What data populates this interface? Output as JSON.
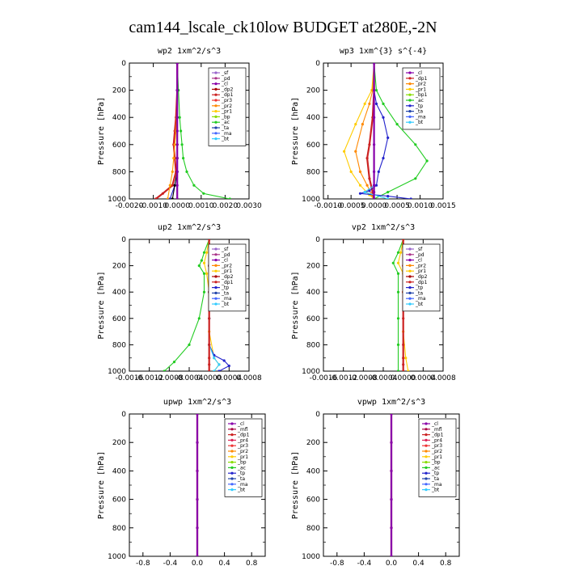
{
  "page": {
    "title": "cam144_lscale_ck10low  BUDGET at280E,-2N"
  },
  "chart_data": [
    {
      "type": "line",
      "title": "wp2   1xm^2/s^3",
      "ylabel": "Pressure [hPa]",
      "xlim": [
        -0.002,
        0.003
      ],
      "ylim": [
        1000,
        0
      ],
      "xticks": [
        "-0.0020",
        "-0.0010",
        "0.0000",
        "0.0010",
        "0.0020",
        "0.0030"
      ],
      "xtick_values": [
        -0.002,
        -0.001,
        0,
        0.001,
        0.002,
        0.003
      ],
      "yticks": [
        "0",
        "200",
        "400",
        "600",
        "800",
        "1000"
      ],
      "ytick_values": [
        0,
        200,
        400,
        600,
        800,
        1000
      ],
      "grid": false,
      "legend_placement": "top-right",
      "legend": [
        "_sf",
        "_pd",
        "_cl",
        "_dp2",
        "_dp1",
        "_pr3",
        "_pr2",
        "_pr1",
        "_bp",
        "_ac",
        "_ta",
        "_ma",
        "_bt"
      ],
      "series": [
        {
          "name": "_dp1",
          "color": "#cc2222",
          "x": [
            0,
            0,
            -5e-05,
            -0.0001,
            -0.00015,
            -0.0001,
            -5e-05,
            -0.0002,
            -0.0006,
            -0.0009
          ],
          "y": [
            0,
            200,
            400,
            500,
            600,
            700,
            800,
            900,
            960,
            1000
          ]
        },
        {
          "name": "_pr1",
          "color": "#ff9900",
          "x": [
            0,
            0,
            -2e-05,
            -5e-05,
            -0.0001,
            -0.00015,
            -0.0002,
            -0.0003,
            -0.0004
          ],
          "y": [
            0,
            200,
            400,
            500,
            600,
            700,
            800,
            900,
            1000
          ]
        },
        {
          "name": "_ac",
          "color": "#22cc22",
          "x": [
            0,
            5e-05,
            0.0001,
            0.00015,
            0.0002,
            0.00025,
            0.0004,
            0.0007,
            0.0011,
            0.0022
          ],
          "y": [
            0,
            200,
            400,
            500,
            600,
            700,
            800,
            900,
            960,
            1000
          ]
        },
        {
          "name": "_bp",
          "color": "#2222cc",
          "x": [
            0,
            0,
            0,
            0,
            0,
            0,
            0,
            -0.0001,
            -0.0003
          ],
          "y": [
            0,
            200,
            400,
            500,
            600,
            700,
            800,
            900,
            1000
          ]
        },
        {
          "name": "_ta",
          "color": "#000000",
          "x": [
            0,
            0,
            0,
            0,
            0,
            0,
            0,
            -0.0001,
            -0.0002
          ],
          "y": [
            0,
            200,
            400,
            500,
            600,
            700,
            800,
            900,
            1000
          ]
        },
        {
          "name": "_cl",
          "color": "#8800aa",
          "x": [
            0,
            0,
            0,
            0,
            0,
            0,
            0,
            0,
            0
          ],
          "y": [
            0,
            200,
            400,
            500,
            600,
            700,
            800,
            900,
            1000
          ]
        }
      ]
    },
    {
      "type": "line",
      "title": "wp3   1xm^{3} s^{-4}",
      "ylabel": "Pressure [hPa]",
      "xlim": [
        -0.0011,
        0.0015
      ],
      "ylim": [
        1000,
        0
      ],
      "xticks": [
        "-0.0010",
        "-0.0005",
        "0.0000",
        "0.0005",
        "0.0010",
        "0.0015"
      ],
      "xtick_values": [
        -0.001,
        -0.0005,
        0,
        0.0005,
        0.001,
        0.0015
      ],
      "yticks": [
        "0",
        "200",
        "400",
        "600",
        "800",
        "1000"
      ],
      "ytick_values": [
        0,
        200,
        400,
        600,
        800,
        1000
      ],
      "grid": false,
      "legend_placement": "top-right",
      "legend": [
        "_cl",
        "_dp1",
        "_pr2",
        "_pr1",
        "_bp1",
        "_ac",
        "_tp",
        "_ta",
        "_ma",
        "_bt"
      ],
      "series": [
        {
          "name": "_pr1",
          "color": "#ffcc00",
          "x": [
            0,
            -5e-05,
            -0.0002,
            -0.0004,
            -0.00065,
            -0.0005,
            -0.0003,
            -0.0001,
            0
          ],
          "y": [
            0,
            200,
            300,
            450,
            650,
            800,
            900,
            970,
            1000
          ]
        },
        {
          "name": "_pr2",
          "color": "#ff8800",
          "x": [
            0,
            -3e-05,
            -0.0001,
            -0.00025,
            -0.0004,
            -0.0003,
            -0.00015,
            -5e-05,
            0
          ],
          "y": [
            0,
            200,
            300,
            450,
            650,
            800,
            900,
            970,
            1000
          ]
        },
        {
          "name": "_dp1",
          "color": "#cc2222",
          "x": [
            0,
            0,
            -3e-05,
            -0.0001,
            -0.00015,
            -0.0001,
            -3e-05,
            0
          ],
          "y": [
            0,
            200,
            400,
            600,
            700,
            850,
            950,
            1000
          ]
        },
        {
          "name": "_ac",
          "color": "#22cc22",
          "x": [
            0,
            5e-05,
            0.0002,
            0.0005,
            0.0009,
            0.00115,
            0.0009,
            0.0003,
            0
          ],
          "y": [
            0,
            200,
            300,
            450,
            600,
            720,
            850,
            950,
            1000
          ]
        },
        {
          "name": "_tp",
          "color": "#2222cc",
          "x": [
            0,
            0,
            5e-05,
            0.0002,
            0.0003,
            0.0002,
            0.0001,
            5e-05,
            -0.0001,
            -0.0003,
            0.0003,
            0.0008
          ],
          "y": [
            0,
            200,
            300,
            400,
            550,
            700,
            800,
            900,
            940,
            960,
            980,
            1000
          ]
        },
        {
          "name": "_bt",
          "color": "#33ccff",
          "x": [
            0,
            0,
            0,
            0,
            0,
            0,
            -0.0002,
            0.0003
          ],
          "y": [
            0,
            200,
            400,
            600,
            800,
            900,
            950,
            1000
          ]
        },
        {
          "name": "_cl",
          "color": "#8800aa",
          "x": [
            0,
            0,
            0,
            0,
            0,
            0,
            0,
            0
          ],
          "y": [
            0,
            200,
            400,
            600,
            800,
            900,
            950,
            1000
          ]
        }
      ]
    },
    {
      "type": "line",
      "title": "up2   1xm^2/s^3",
      "ylabel": "Pressure [hPa]",
      "xlim": [
        -0.0016,
        0.0008
      ],
      "ylim": [
        1000,
        0
      ],
      "xticks": [
        "-0.0016",
        "-0.0012",
        "-0.0008",
        "-0.0004",
        "0.0000",
        "0.0004",
        "0.0008"
      ],
      "xtick_values": [
        -0.0016,
        -0.0012,
        -0.0008,
        -0.0004,
        0,
        0.0004,
        0.0008
      ],
      "yticks": [
        "0",
        "200",
        "400",
        "600",
        "800",
        "1000"
      ],
      "ytick_values": [
        0,
        200,
        400,
        600,
        800,
        1000
      ],
      "grid": false,
      "legend_placement": "top-right",
      "legend": [
        "_sf",
        "_pd",
        "_cl",
        "_pr2",
        "_pr1",
        "_dp2",
        "_dp1",
        "_tp",
        "_ta",
        "_ma",
        "_bt"
      ],
      "series": [
        {
          "name": "_ac",
          "color": "#22cc22",
          "x": [
            0,
            -0.0001,
            -0.00015,
            -0.0002,
            -0.0001,
            -0.0001,
            -0.0002,
            -0.0004,
            -0.0007,
            -0.0009
          ],
          "y": [
            0,
            100,
            160,
            200,
            260,
            400,
            600,
            800,
            930,
            1000
          ]
        },
        {
          "name": "_pr1",
          "color": "#ffcc00",
          "x": [
            0,
            -5e-05,
            -0.0001,
            -5e-05,
            0,
            0,
            0.0001,
            0.0002,
            0.0001
          ],
          "y": [
            0,
            100,
            180,
            260,
            400,
            700,
            900,
            950,
            1000
          ]
        },
        {
          "name": "_tp",
          "color": "#2222cc",
          "x": [
            0,
            0,
            0,
            0,
            0,
            0.0001,
            0.0003,
            0.0004,
            0.0002
          ],
          "y": [
            0,
            200,
            400,
            600,
            800,
            880,
            920,
            960,
            1000
          ]
        },
        {
          "name": "_bt",
          "color": "#33ccff",
          "x": [
            0,
            0,
            0,
            0,
            0,
            0.0001,
            0.0002,
            0.0001
          ],
          "y": [
            0,
            200,
            400,
            600,
            800,
            900,
            950,
            1000
          ]
        },
        {
          "name": "_dp1",
          "color": "#cc2222",
          "x": [
            0,
            0,
            0,
            0,
            0,
            0,
            0,
            0
          ],
          "y": [
            0,
            200,
            400,
            600,
            800,
            900,
            950,
            1000
          ]
        }
      ]
    },
    {
      "type": "line",
      "title": "vp2   1xm^2/s^3",
      "ylabel": "Pressure [hPa]",
      "xlim": [
        -0.0016,
        0.0008
      ],
      "ylim": [
        1000,
        0
      ],
      "xticks": [
        "-0.0016",
        "-0.0012",
        "-0.0008",
        "-0.0004",
        "0.0000",
        "0.0004",
        "0.0008"
      ],
      "xtick_values": [
        -0.0016,
        -0.0012,
        -0.0008,
        -0.0004,
        0,
        0.0004,
        0.0008
      ],
      "yticks": [
        "0",
        "200",
        "400",
        "600",
        "800",
        "1000"
      ],
      "ytick_values": [
        0,
        200,
        400,
        600,
        800,
        1000
      ],
      "grid": false,
      "legend_placement": "top-right",
      "legend": [
        "_sf",
        "_pd",
        "_cl",
        "_pr2",
        "_pr1",
        "_dp2",
        "_dp1",
        "_tp",
        "_ta",
        "_ma",
        "_bt"
      ],
      "series": [
        {
          "name": "_ac",
          "color": "#22cc22",
          "x": [
            0,
            -0.0001,
            -0.0002,
            -0.0001,
            -0.0001,
            -0.0001,
            -0.0001,
            -0.0001
          ],
          "y": [
            0,
            100,
            180,
            260,
            400,
            600,
            800,
            1000
          ]
        },
        {
          "name": "_pr1",
          "color": "#ffcc00",
          "x": [
            0,
            -5e-05,
            -0.0001,
            0,
            0,
            0,
            5e-05,
            0.0001
          ],
          "y": [
            0,
            100,
            180,
            260,
            400,
            700,
            900,
            1000
          ]
        },
        {
          "name": "_dp1",
          "color": "#cc2222",
          "x": [
            0,
            0,
            0,
            0,
            0,
            0,
            0,
            0
          ],
          "y": [
            0,
            200,
            400,
            600,
            800,
            900,
            950,
            1000
          ]
        }
      ]
    },
    {
      "type": "line",
      "title": "upwp   1xm^2/s^3",
      "ylabel": "Pressure [hPa]",
      "xlim": [
        -1.0,
        1.0
      ],
      "ylim": [
        1000,
        0
      ],
      "xticks": [
        "-0.8",
        "-0.4",
        "0.0",
        "0.4",
        "0.8"
      ],
      "xtick_values": [
        -0.8,
        -0.4,
        0,
        0.4,
        0.8
      ],
      "yticks": [
        "0",
        "200",
        "400",
        "600",
        "800",
        "1000"
      ],
      "ytick_values": [
        0,
        200,
        400,
        600,
        800,
        1000
      ],
      "grid": false,
      "legend_placement": "top-right",
      "legend": [
        "_cl",
        "_mfl",
        "_dp1",
        "_pr4",
        "_pr3",
        "_pr2",
        "_pr1",
        "_bp",
        "_ac",
        "_tp",
        "_ta",
        "_ma",
        "_bt"
      ],
      "series": [
        {
          "name": "_dp1",
          "color": "#cc2222",
          "x": [
            0,
            0,
            0,
            0,
            0,
            0
          ],
          "y": [
            0,
            200,
            400,
            600,
            800,
            1000
          ]
        },
        {
          "name": "_cl",
          "color": "#8800aa",
          "x": [
            0,
            0,
            0,
            0,
            0,
            0
          ],
          "y": [
            0,
            200,
            400,
            600,
            800,
            1000
          ]
        }
      ]
    },
    {
      "type": "line",
      "title": "vpwp   1xm^2/s^3",
      "ylabel": "Pressure [hPa]",
      "xlim": [
        -1.0,
        1.0
      ],
      "ylim": [
        1000,
        0
      ],
      "xticks": [
        "-0.8",
        "-0.4",
        "0.0",
        "0.4",
        "0.8"
      ],
      "xtick_values": [
        -0.8,
        -0.4,
        0,
        0.4,
        0.8
      ],
      "yticks": [
        "0",
        "200",
        "400",
        "600",
        "800",
        "1000"
      ],
      "ytick_values": [
        0,
        200,
        400,
        600,
        800,
        1000
      ],
      "grid": false,
      "legend_placement": "top-right",
      "legend": [
        "_cl",
        "_mfl",
        "_dp1",
        "_pr4",
        "_pr3",
        "_pr2",
        "_pr1",
        "_bp",
        "_ac",
        "_tp",
        "_ta",
        "_ma",
        "_bt"
      ],
      "series": [
        {
          "name": "_dp1",
          "color": "#cc2222",
          "x": [
            0,
            0,
            0,
            0,
            0,
            0
          ],
          "y": [
            0,
            200,
            400,
            600,
            800,
            1000
          ]
        },
        {
          "name": "_cl",
          "color": "#8800aa",
          "x": [
            0,
            0,
            0,
            0,
            0,
            0
          ],
          "y": [
            0,
            200,
            400,
            600,
            800,
            1000
          ]
        }
      ]
    }
  ],
  "legend_colors": {
    "_sf": "#9966cc",
    "_pd": "#aa3388",
    "_cl": "#8800aa",
    "_mfl": "#aa0044",
    "_dp2": "#aa0000",
    "_dp1": "#cc2222",
    "_pr4": "#dd2255",
    "_pr3": "#ee3333",
    "_pr2": "#ff8800",
    "_pr1": "#ffcc00",
    "_bp": "#88dd00",
    "_bp1": "#88dd00",
    "_ac": "#22cc22",
    "_tp": "#2222cc",
    "_ta": "#2244aa",
    "_ma": "#4466ff",
    "_bt": "#33ccff"
  }
}
